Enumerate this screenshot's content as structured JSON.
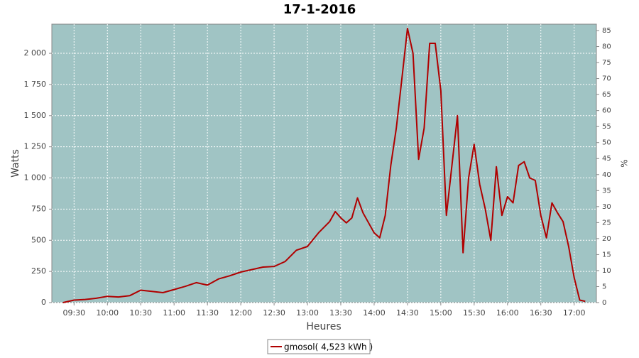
{
  "chart_data": {
    "type": "line",
    "title": "17-1-2016",
    "x_label": "Heures",
    "y_label": "Watts",
    "y2_label": "%",
    "x": [
      "09:20",
      "09:30",
      "09:40",
      "09:50",
      "10:00",
      "10:10",
      "10:20",
      "10:30",
      "10:40",
      "10:50",
      "11:00",
      "11:10",
      "11:20",
      "11:30",
      "11:40",
      "11:50",
      "12:00",
      "12:10",
      "12:20",
      "12:30",
      "12:40",
      "12:50",
      "13:00",
      "13:10",
      "13:20",
      "13:25",
      "13:30",
      "13:35",
      "13:40",
      "13:45",
      "13:50",
      "13:55",
      "14:00",
      "14:05",
      "14:10",
      "14:15",
      "14:20",
      "14:25",
      "14:30",
      "14:35",
      "14:40",
      "14:45",
      "14:50",
      "14:55",
      "15:00",
      "15:05",
      "15:10",
      "15:15",
      "15:20",
      "15:25",
      "15:30",
      "15:35",
      "15:40",
      "15:45",
      "15:50",
      "15:55",
      "16:00",
      "16:05",
      "16:10",
      "16:15",
      "16:20",
      "16:25",
      "16:30",
      "16:35",
      "16:40",
      "16:45",
      "16:50",
      "16:55",
      "17:00",
      "17:05",
      "17:10"
    ],
    "series": [
      {
        "name": "gmosol( 4,523 kWh )",
        "color": "#b00000",
        "values": [
          0,
          20,
          25,
          35,
          50,
          45,
          55,
          100,
          90,
          80,
          105,
          130,
          160,
          140,
          190,
          215,
          245,
          265,
          285,
          290,
          330,
          420,
          450,
          560,
          650,
          730,
          680,
          640,
          680,
          840,
          720,
          640,
          560,
          520,
          700,
          1100,
          1400,
          1800,
          2200,
          2000,
          1150,
          1400,
          2080,
          2080,
          1700,
          700,
          1100,
          1500,
          400,
          1000,
          1270,
          950,
          750,
          500,
          1090,
          700,
          850,
          800,
          1100,
          1130,
          1000,
          980,
          700,
          520,
          800,
          720,
          650,
          450,
          200,
          20,
          10
        ]
      }
    ],
    "xlim": [
      "09:10",
      "17:20"
    ],
    "xticks": [
      "09:30",
      "10:00",
      "10:30",
      "11:00",
      "11:30",
      "12:00",
      "12:30",
      "13:00",
      "13:30",
      "14:00",
      "14:30",
      "15:00",
      "15:30",
      "16:00",
      "16:30",
      "17:00"
    ],
    "ylim": [
      0,
      2234
    ],
    "yticks": [
      0,
      250,
      500,
      750,
      {
        "value": 1000,
        "label": "1 000"
      },
      {
        "value": 1250,
        "label": "1 250"
      },
      {
        "value": 1500,
        "label": "1 500"
      },
      {
        "value": 1750,
        "label": "1 750"
      },
      {
        "value": 2000,
        "label": "2 000"
      }
    ],
    "y2lim": [
      0,
      87
    ],
    "y2ticks": [
      0,
      5,
      10,
      15,
      20,
      25,
      30,
      35,
      40,
      45,
      50,
      55,
      60,
      65,
      70,
      75,
      80,
      85
    ],
    "grid": true,
    "background": "#a0c4c4",
    "legend": "bottom"
  }
}
